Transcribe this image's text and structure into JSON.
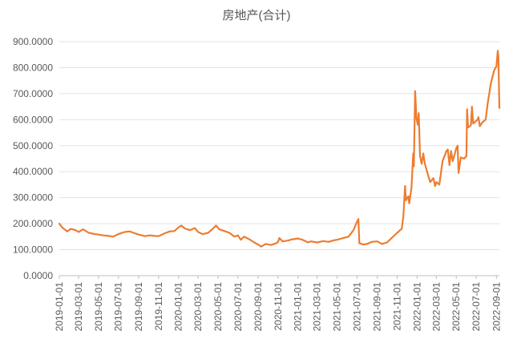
{
  "chart_data": {
    "type": "line",
    "title": "房地产(合计)",
    "xlabel": "",
    "ylabel": "",
    "ylim": [
      0,
      900
    ],
    "yticks": [
      "0.0000",
      "100.0000",
      "200.0000",
      "300.0000",
      "400.0000",
      "500.0000",
      "600.0000",
      "700.0000",
      "800.0000",
      "900.0000"
    ],
    "xticks": [
      "2019-01-01",
      "2019-03-01",
      "2019-05-01",
      "2019-07-01",
      "2019-09-01",
      "2019-11-01",
      "2020-01-01",
      "2020-03-01",
      "2020-05-01",
      "2020-07-01",
      "2020-09-01",
      "2020-11-01",
      "2021-01-01",
      "2021-03-01",
      "2021-05-01",
      "2021-07-01",
      "2021-09-01",
      "2021-11-01",
      "2022-01-01",
      "2022-03-01",
      "2022-05-01",
      "2022-07-01",
      "2022-09-01"
    ],
    "xrange": [
      "2019-01-01",
      "2022-09-10"
    ],
    "grid": true,
    "line_color": "#ED7D31",
    "series": [
      {
        "name": "",
        "points": [
          [
            "2019-01-01",
            200
          ],
          [
            "2019-01-10",
            185
          ],
          [
            "2019-01-25",
            170
          ],
          [
            "2019-02-05",
            180
          ],
          [
            "2019-02-20",
            175
          ],
          [
            "2019-03-01",
            168
          ],
          [
            "2019-03-15",
            178
          ],
          [
            "2019-04-01",
            165
          ],
          [
            "2019-04-20",
            160
          ],
          [
            "2019-05-01",
            158
          ],
          [
            "2019-05-15",
            155
          ],
          [
            "2019-06-01",
            153
          ],
          [
            "2019-06-15",
            150
          ],
          [
            "2019-07-01",
            160
          ],
          [
            "2019-07-20",
            168
          ],
          [
            "2019-08-05",
            170
          ],
          [
            "2019-08-20",
            163
          ],
          [
            "2019-09-01",
            158
          ],
          [
            "2019-09-20",
            152
          ],
          [
            "2019-10-05",
            155
          ],
          [
            "2019-10-20",
            153
          ],
          [
            "2019-11-01",
            152
          ],
          [
            "2019-11-20",
            163
          ],
          [
            "2019-12-05",
            170
          ],
          [
            "2019-12-20",
            172
          ],
          [
            "2020-01-01",
            186
          ],
          [
            "2020-01-10",
            193
          ],
          [
            "2020-01-20",
            182
          ],
          [
            "2020-02-05",
            175
          ],
          [
            "2020-02-20",
            183
          ],
          [
            "2020-03-01",
            168
          ],
          [
            "2020-03-15",
            160
          ],
          [
            "2020-04-01",
            165
          ],
          [
            "2020-04-15",
            180
          ],
          [
            "2020-04-25",
            193
          ],
          [
            "2020-05-05",
            178
          ],
          [
            "2020-05-20",
            172
          ],
          [
            "2020-06-05",
            165
          ],
          [
            "2020-06-20",
            150
          ],
          [
            "2020-07-01",
            155
          ],
          [
            "2020-07-10",
            138
          ],
          [
            "2020-07-20",
            150
          ],
          [
            "2020-08-05",
            140
          ],
          [
            "2020-08-20",
            128
          ],
          [
            "2020-09-01",
            120
          ],
          [
            "2020-09-10",
            112
          ],
          [
            "2020-09-25",
            122
          ],
          [
            "2020-10-10",
            118
          ],
          [
            "2020-10-25",
            124
          ],
          [
            "2020-11-01",
            130
          ],
          [
            "2020-11-05",
            145
          ],
          [
            "2020-11-15",
            132
          ],
          [
            "2020-12-01",
            135
          ],
          [
            "2020-12-15",
            140
          ],
          [
            "2021-01-01",
            143
          ],
          [
            "2021-01-15",
            138
          ],
          [
            "2021-02-01",
            128
          ],
          [
            "2021-02-10",
            132
          ],
          [
            "2021-03-01",
            128
          ],
          [
            "2021-03-20",
            133
          ],
          [
            "2021-04-05",
            130
          ],
          [
            "2021-04-20",
            136
          ],
          [
            "2021-05-01",
            138
          ],
          [
            "2021-05-20",
            145
          ],
          [
            "2021-06-05",
            150
          ],
          [
            "2021-06-20",
            175
          ],
          [
            "2021-06-30",
            205
          ],
          [
            "2021-07-05",
            218
          ],
          [
            "2021-07-08",
            125
          ],
          [
            "2021-07-20",
            120
          ],
          [
            "2021-08-01",
            122
          ],
          [
            "2021-08-15",
            130
          ],
          [
            "2021-09-01",
            132
          ],
          [
            "2021-09-15",
            122
          ],
          [
            "2021-10-01",
            128
          ],
          [
            "2021-10-15",
            145
          ],
          [
            "2021-11-01",
            165
          ],
          [
            "2021-11-10",
            175
          ],
          [
            "2021-11-15",
            180
          ],
          [
            "2021-11-20",
            230
          ],
          [
            "2021-11-25",
            345
          ],
          [
            "2021-11-28",
            290
          ],
          [
            "2021-12-05",
            305
          ],
          [
            "2021-12-08",
            278
          ],
          [
            "2021-12-15",
            340
          ],
          [
            "2021-12-20",
            470
          ],
          [
            "2021-12-22",
            420
          ],
          [
            "2021-12-26",
            710
          ],
          [
            "2021-12-30",
            605
          ],
          [
            "2022-01-03",
            580
          ],
          [
            "2022-01-06",
            625
          ],
          [
            "2022-01-10",
            460
          ],
          [
            "2022-01-15",
            430
          ],
          [
            "2022-01-20",
            470
          ],
          [
            "2022-01-25",
            430
          ],
          [
            "2022-02-05",
            380
          ],
          [
            "2022-02-10",
            360
          ],
          [
            "2022-02-20",
            375
          ],
          [
            "2022-02-25",
            345
          ],
          [
            "2022-03-01",
            360
          ],
          [
            "2022-03-10",
            350
          ],
          [
            "2022-03-20",
            440
          ],
          [
            "2022-04-01",
            480
          ],
          [
            "2022-04-05",
            485
          ],
          [
            "2022-04-10",
            425
          ],
          [
            "2022-04-15",
            480
          ],
          [
            "2022-04-20",
            440
          ],
          [
            "2022-05-01",
            490
          ],
          [
            "2022-05-05",
            500
          ],
          [
            "2022-05-08",
            395
          ],
          [
            "2022-05-15",
            455
          ],
          [
            "2022-05-25",
            450
          ],
          [
            "2022-06-01",
            460
          ],
          [
            "2022-06-03",
            640
          ],
          [
            "2022-06-06",
            570
          ],
          [
            "2022-06-12",
            575
          ],
          [
            "2022-06-15",
            580
          ],
          [
            "2022-06-18",
            650
          ],
          [
            "2022-06-22",
            585
          ],
          [
            "2022-07-05",
            600
          ],
          [
            "2022-07-08",
            610
          ],
          [
            "2022-07-12",
            575
          ],
          [
            "2022-07-20",
            590
          ],
          [
            "2022-07-30",
            600
          ],
          [
            "2022-08-05",
            660
          ],
          [
            "2022-08-15",
            740
          ],
          [
            "2022-08-25",
            790
          ],
          [
            "2022-09-01",
            805
          ],
          [
            "2022-09-05",
            865
          ],
          [
            "2022-09-07",
            840
          ],
          [
            "2022-09-10",
            645
          ]
        ]
      }
    ]
  }
}
